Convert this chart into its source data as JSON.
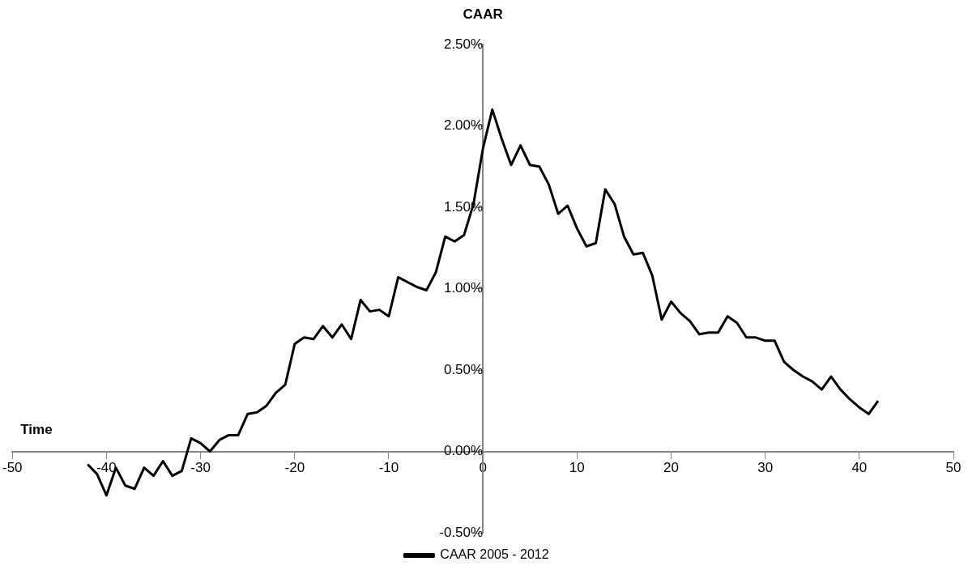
{
  "chart_data": {
    "type": "line",
    "xlabel": "Time",
    "ylabel": "CAAR",
    "x": [
      -42,
      -41,
      -40,
      -39,
      -38,
      -37,
      -36,
      -35,
      -34,
      -33,
      -32,
      -31,
      -30,
      -29,
      -28,
      -27,
      -26,
      -25,
      -24,
      -23,
      -22,
      -21,
      -20,
      -19,
      -18,
      -17,
      -16,
      -15,
      -14,
      -13,
      -12,
      -11,
      -10,
      -9,
      -8,
      -7,
      -6,
      -5,
      -4,
      -3,
      -2,
      -1,
      0,
      1,
      2,
      3,
      4,
      5,
      6,
      7,
      8,
      9,
      10,
      11,
      12,
      13,
      14,
      15,
      16,
      17,
      18,
      19,
      20,
      21,
      22,
      23,
      24,
      25,
      26,
      27,
      28,
      29,
      30,
      31,
      32,
      33,
      34,
      35,
      36,
      37,
      38,
      39,
      40,
      41,
      42
    ],
    "series": [
      {
        "name": "CAAR 2005 - 2012",
        "color": "#000000",
        "values": [
          -0.08,
          -0.14,
          -0.27,
          -0.1,
          -0.21,
          -0.23,
          -0.1,
          -0.15,
          -0.06,
          -0.15,
          -0.12,
          0.08,
          0.05,
          0.0,
          0.07,
          0.1,
          0.1,
          0.23,
          0.24,
          0.28,
          0.36,
          0.41,
          0.66,
          0.7,
          0.69,
          0.77,
          0.7,
          0.78,
          0.69,
          0.93,
          0.86,
          0.87,
          0.83,
          1.07,
          1.04,
          1.01,
          0.99,
          1.1,
          1.32,
          1.29,
          1.33,
          1.52,
          1.86,
          2.1,
          1.92,
          1.76,
          1.88,
          1.76,
          1.75,
          1.64,
          1.46,
          1.51,
          1.37,
          1.26,
          1.28,
          1.61,
          1.52,
          1.32,
          1.21,
          1.22,
          1.08,
          0.81,
          0.92,
          0.85,
          0.8,
          0.72,
          0.73,
          0.73,
          0.83,
          0.79,
          0.7,
          0.7,
          0.68,
          0.68,
          0.55,
          0.5,
          0.46,
          0.43,
          0.38,
          0.46,
          0.38,
          0.32,
          0.27,
          0.23,
          0.31
        ]
      }
    ],
    "xlim": [
      -50,
      50
    ],
    "xticks": [
      -50,
      -40,
      -30,
      -20,
      -10,
      0,
      10,
      20,
      30,
      40,
      50
    ],
    "ylim": [
      -0.5,
      2.5
    ],
    "yticks": [
      {
        "value": -0.5,
        "label": "-0.50%"
      },
      {
        "value": 0,
        "label": "0.00%"
      },
      {
        "value": 0.5,
        "label": "0.50%"
      },
      {
        "value": 1,
        "label": "1.00%"
      },
      {
        "value": 1.5,
        "label": "1.50%"
      },
      {
        "value": 2,
        "label": "2.00%"
      },
      {
        "value": 2.5,
        "label": "2.50%"
      }
    ],
    "grid": false,
    "legend": "bottom",
    "marker": "none",
    "line_style": "solid"
  }
}
